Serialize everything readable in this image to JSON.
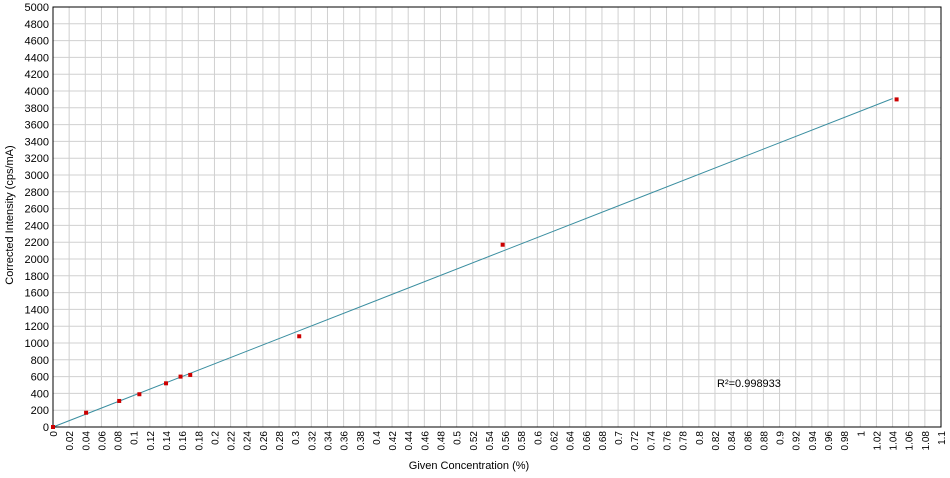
{
  "chart_data": {
    "type": "scatter",
    "title": "",
    "xlabel": "Given Concentration (%)",
    "ylabel": "Corrected Intensity (cps/mA)",
    "xlim": [
      0,
      1.1
    ],
    "ylim": [
      0,
      5000
    ],
    "x_ticks": [
      "0",
      "0.02",
      "0.04",
      "0.06",
      "0.08",
      "0.1",
      "0.12",
      "0.14",
      "0.16",
      "0.18",
      "0.2",
      "0.22",
      "0.24",
      "0.26",
      "0.28",
      "0.3",
      "0.32",
      "0.34",
      "0.36",
      "0.38",
      "0.4",
      "0.42",
      "0.44",
      "0.46",
      "0.48",
      "0.5",
      "0.52",
      "0.54",
      "0.56",
      "0.58",
      "0.6",
      "0.62",
      "0.64",
      "0.66",
      "0.68",
      "0.7",
      "0.72",
      "0.74",
      "0.76",
      "0.78",
      "0.8",
      "0.82",
      "0.84",
      "0.86",
      "0.88",
      "0.9",
      "0.92",
      "0.94",
      "0.96",
      "0.98",
      "1",
      "1.02",
      "1.04",
      "1.06",
      "1.08",
      "1.1"
    ],
    "y_ticks": [
      "0",
      "200",
      "400",
      "600",
      "800",
      "1000",
      "1200",
      "1400",
      "1600",
      "1800",
      "2000",
      "2200",
      "2400",
      "2600",
      "2800",
      "3000",
      "3200",
      "3400",
      "3600",
      "3800",
      "4000",
      "4200",
      "4400",
      "4600",
      "4800",
      "5000"
    ],
    "grid": true,
    "series": [
      {
        "marker_color": "#cc0000",
        "x": [
          0.0,
          0.041,
          0.082,
          0.107,
          0.14,
          0.158,
          0.17,
          0.305,
          0.557,
          1.045
        ],
        "y": [
          0,
          170,
          310,
          390,
          520,
          600,
          620,
          1080,
          2170,
          3900
        ]
      }
    ],
    "trendline": {
      "color": "#3a8ea0",
      "x": [
        0.0,
        1.04
      ],
      "y": [
        0,
        3910
      ]
    },
    "annotation": "R²=0.998933"
  }
}
